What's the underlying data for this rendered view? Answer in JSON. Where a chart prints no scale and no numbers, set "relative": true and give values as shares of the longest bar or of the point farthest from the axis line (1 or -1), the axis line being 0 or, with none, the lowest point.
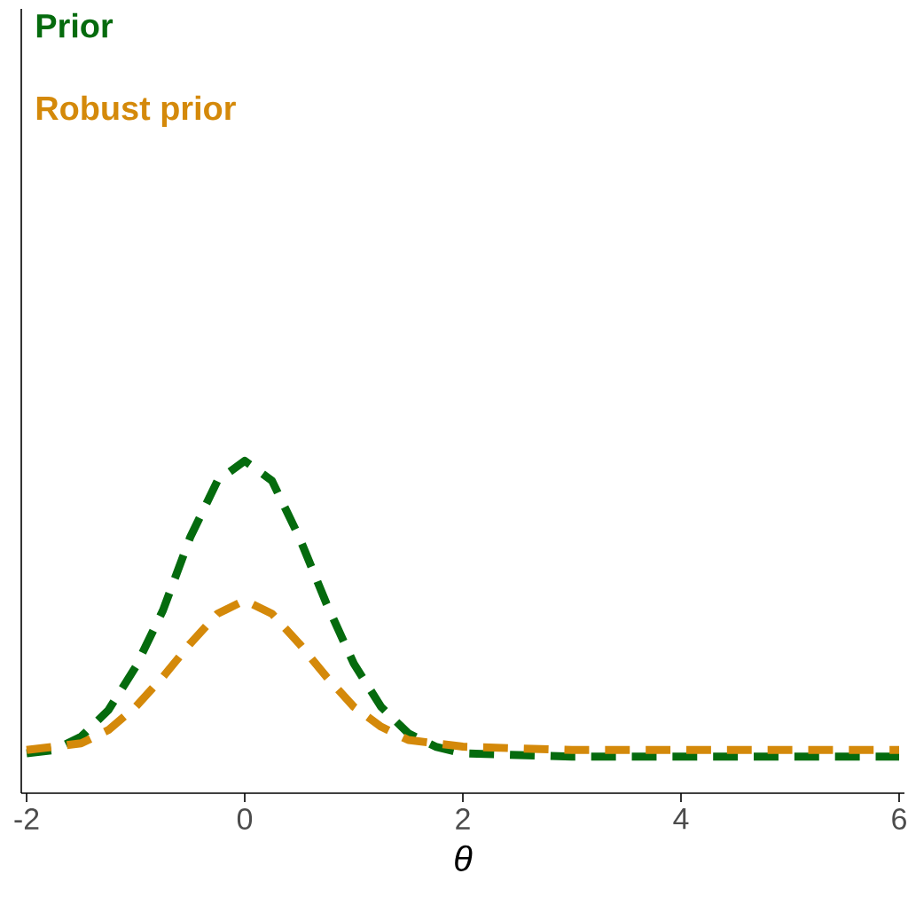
{
  "chart_data": {
    "type": "line",
    "relative": true,
    "xlabel": "θ",
    "xlim": [
      -2,
      6
    ],
    "xticks": [
      -2,
      0,
      2,
      4,
      6
    ],
    "legend": "top left",
    "line_style": "dashed",
    "marker": "none",
    "grid": false,
    "series": [
      {
        "name": "Prior",
        "color": "#056b0e",
        "x": [
          -2,
          -1.75,
          -1.5,
          -1.25,
          -1,
          -0.75,
          -0.5,
          -0.25,
          0,
          0.25,
          0.5,
          0.75,
          1,
          1.25,
          1.5,
          1.75,
          2,
          3,
          4,
          5,
          6
        ],
        "values": [
          0.12,
          0.13,
          0.17,
          0.25,
          0.38,
          0.55,
          0.77,
          0.94,
          1.0,
          0.94,
          0.77,
          0.57,
          0.39,
          0.26,
          0.18,
          0.14,
          0.12,
          0.11,
          0.11,
          0.11,
          0.11
        ]
      },
      {
        "name": "Robust prior",
        "color": "#d4890a",
        "x": [
          -2,
          -1.5,
          -1.25,
          -1,
          -0.75,
          -0.5,
          -0.25,
          0,
          0.25,
          0.5,
          0.75,
          1,
          1.25,
          1.5,
          2,
          3,
          4,
          5,
          6
        ],
        "values": [
          0.13,
          0.15,
          0.19,
          0.26,
          0.35,
          0.45,
          0.54,
          0.58,
          0.54,
          0.45,
          0.35,
          0.26,
          0.2,
          0.16,
          0.14,
          0.13,
          0.13,
          0.13,
          0.13
        ]
      }
    ]
  }
}
